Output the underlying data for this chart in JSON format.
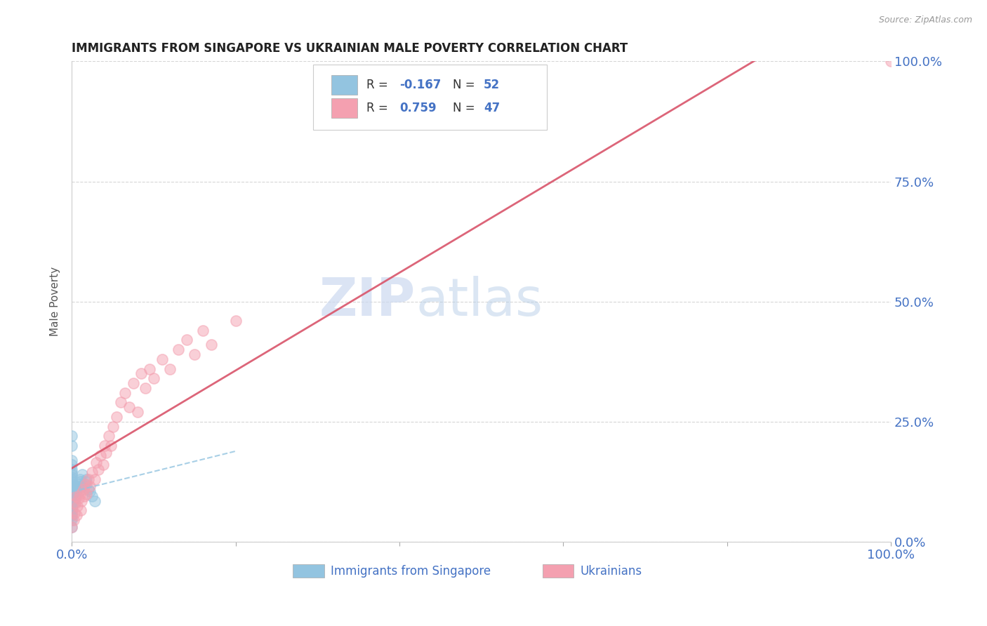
{
  "title": "IMMIGRANTS FROM SINGAPORE VS UKRAINIAN MALE POVERTY CORRELATION CHART",
  "source_text": "Source: ZipAtlas.com",
  "ylabel": "Male Poverty",
  "watermark": "ZIPatlas",
  "xmin": 0.0,
  "xmax": 1.0,
  "ymin": 0.0,
  "ymax": 1.0,
  "x_tick_positions": [
    0.0,
    0.2,
    0.4,
    0.6,
    0.8,
    1.0
  ],
  "x_tick_labels": [
    "0.0%",
    "",
    "",
    "",
    "",
    "100.0%"
  ],
  "y_ticks": [
    0.0,
    0.25,
    0.5,
    0.75,
    1.0
  ],
  "y_tick_labels": [
    "0.0%",
    "25.0%",
    "50.0%",
    "75.0%",
    "100.0%"
  ],
  "legend_R1": "-0.167",
  "legend_N1": "52",
  "legend_R2": "0.759",
  "legend_N2": "47",
  "singapore_color": "#93c4e0",
  "ukrainian_color": "#f4a0b0",
  "singapore_trend_color": "#93c4e0",
  "ukrainian_trend_color": "#d9546a",
  "background_color": "#ffffff",
  "grid_color": "#cccccc",
  "axis_label_color": "#4472c4",
  "watermark_color": "#ccd9f0"
}
